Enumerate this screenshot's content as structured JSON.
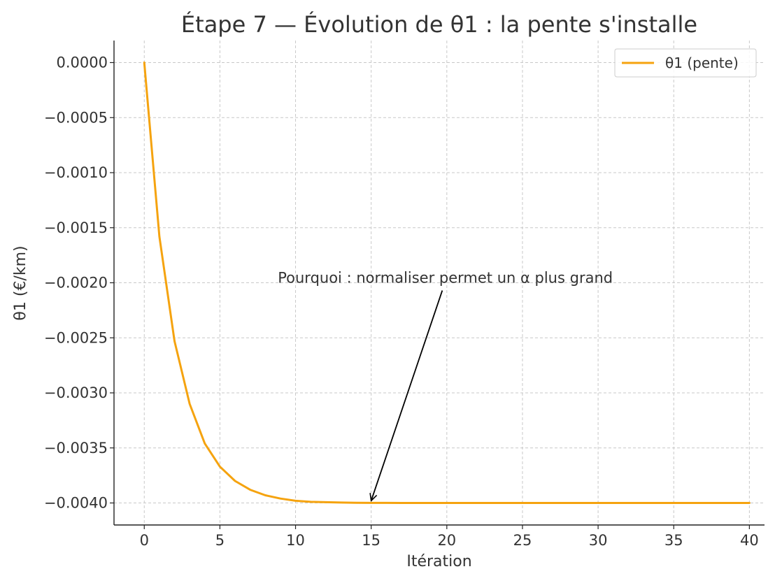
{
  "chart_data": {
    "type": "line",
    "title": "Étape 7 — Évolution de θ1 : la pente s'installe",
    "xlabel": "Itération",
    "ylabel": "θ1 (€/km)",
    "xlim": [
      -2,
      41
    ],
    "ylim": [
      -0.0042,
      0.0002
    ],
    "xticks": [
      0,
      5,
      10,
      15,
      20,
      25,
      30,
      35,
      40
    ],
    "xtick_labels": [
      "0",
      "5",
      "10",
      "15",
      "20",
      "25",
      "30",
      "35",
      "40"
    ],
    "yticks": [
      0.0,
      -0.0005,
      -0.001,
      -0.0015,
      -0.002,
      -0.0025,
      -0.003,
      -0.0035,
      -0.004
    ],
    "ytick_labels": [
      "0.0000",
      "−0.0005",
      "−0.0010",
      "−0.0015",
      "−0.0020",
      "−0.0025",
      "−0.0030",
      "−0.0035",
      "−0.0040"
    ],
    "grid": true,
    "legend_position": "top-right",
    "series": [
      {
        "name": "θ1 (pente)",
        "color": "#f5a30f",
        "x": [
          0,
          1,
          2,
          3,
          4,
          5,
          6,
          7,
          8,
          9,
          10,
          11,
          12,
          13,
          14,
          15,
          16,
          17,
          18,
          19,
          20,
          21,
          22,
          23,
          24,
          25,
          26,
          27,
          28,
          29,
          30,
          31,
          32,
          33,
          34,
          35,
          36,
          37,
          38,
          39,
          40
        ],
        "y": [
          0.0,
          -0.00158,
          -0.00253,
          -0.0031,
          -0.00346,
          -0.00367,
          -0.0038,
          -0.00388,
          -0.00393,
          -0.00396,
          -0.00398,
          -0.00399,
          -0.003993,
          -0.003996,
          -0.003998,
          -0.003999,
          -0.0039995,
          -0.0039997,
          -0.0039998,
          -0.0039999,
          -0.004,
          -0.004,
          -0.004,
          -0.004,
          -0.004,
          -0.004,
          -0.004,
          -0.004,
          -0.004,
          -0.004,
          -0.004,
          -0.004,
          -0.004,
          -0.004,
          -0.004,
          -0.004,
          -0.004,
          -0.004,
          -0.004,
          -0.004,
          -0.004
        ]
      }
    ],
    "annotations": [
      {
        "text": "Pourquoi : normaliser permet un α plus grand",
        "text_x": 15,
        "text_y": -0.002,
        "arrow_from_x": 19.7,
        "arrow_from_y": -0.00207,
        "arrow_to_x": 15,
        "arrow_to_y": -0.00398
      }
    ]
  }
}
